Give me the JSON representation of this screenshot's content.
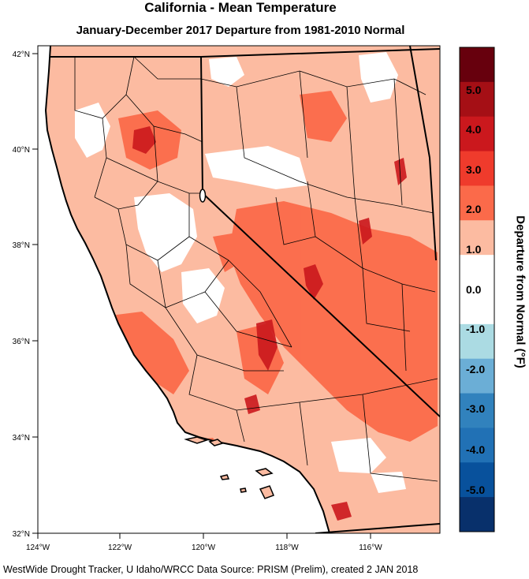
{
  "title": "California - Mean Temperature",
  "subtitle": "January-December 2017  Departure from 1981-2010 Normal",
  "footer": "WestWide Drought Tracker, U Idaho/WRCC Data Source: PRISM (Prelim), created  2 JAN 2018",
  "map": {
    "lat_ticks": [
      "42°N",
      "40°N",
      "38°N",
      "36°N",
      "34°N",
      "32°N"
    ],
    "lon_ticks": [
      "124°W",
      "122°W",
      "120°W",
      "118°W",
      "116°W"
    ]
  },
  "colorbar": {
    "title": "Departure from Normal (°F)",
    "labels": [
      "5.0",
      "4.0",
      "3.0",
      "2.0",
      "1.0",
      "0.0",
      "-1.0",
      "-2.0",
      "-3.0",
      "-4.0",
      "-5.0"
    ],
    "colors": [
      "#67000d",
      "#a50f15",
      "#cb181d",
      "#ef3b2c",
      "#fb6a4a",
      "#fcbba1",
      "#ffffff",
      "#ffffff",
      "#abdbe3",
      "#6baed6",
      "#3182bd",
      "#2171b5",
      "#08519c",
      "#08306b"
    ]
  }
}
